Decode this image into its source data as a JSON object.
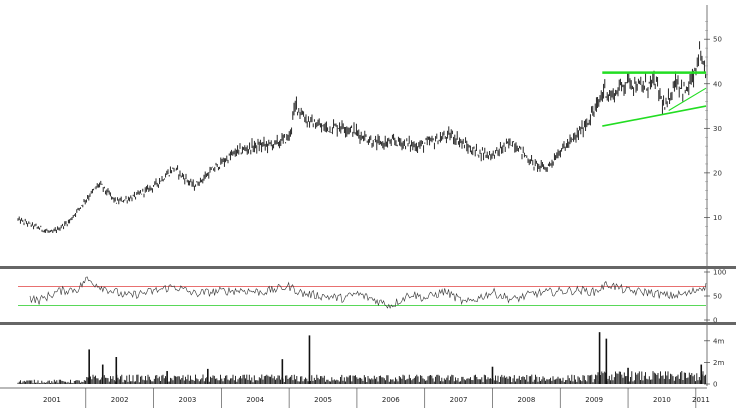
{
  "colors": {
    "price": "#111111",
    "trendline": "#22dd22",
    "rsi_line": "#333333",
    "rsi_upper": "#e04040",
    "rsi_lower": "#22cc22",
    "volume": "#111111",
    "separator": "#666666"
  },
  "chart_data": [
    {
      "type": "line",
      "panel": "price",
      "x_start": 2001.0,
      "x_end": 2011.15,
      "ylim": [
        0,
        57
      ],
      "yticks": [
        "10",
        "20",
        "30",
        "40",
        "50"
      ],
      "x": [
        2001.0,
        2001.25,
        2001.5,
        2001.75,
        2002.0,
        2002.2,
        2002.45,
        2002.7,
        2003.0,
        2003.3,
        2003.6,
        2003.9,
        2004.2,
        2004.5,
        2004.8,
        2005.0,
        2005.1,
        2005.25,
        2005.5,
        2005.8,
        2006.0,
        2006.3,
        2006.6,
        2006.9,
        2007.1,
        2007.4,
        2007.7,
        2008.0,
        2008.3,
        2008.6,
        2008.8,
        2009.0,
        2009.2,
        2009.4,
        2009.55,
        2009.65,
        2009.75,
        2010.0,
        2010.2,
        2010.4,
        2010.55,
        2010.7,
        2010.85,
        2011.0,
        2011.05,
        2011.1
      ],
      "y": [
        9.5,
        8.0,
        6.5,
        9.0,
        14.0,
        17.5,
        13.5,
        14.5,
        17.0,
        21.0,
        17.0,
        21.0,
        24.5,
        26.0,
        26.5,
        28.0,
        35.5,
        32.0,
        30.0,
        30.5,
        29.0,
        26.5,
        27.0,
        26.0,
        27.0,
        28.5,
        25.0,
        24.0,
        27.0,
        22.0,
        21.0,
        25.0,
        27.5,
        31.5,
        35.0,
        39.0,
        37.0,
        41.0,
        39.0,
        40.5,
        34.0,
        41.0,
        38.0,
        42.5,
        47.0,
        43.0
      ],
      "trendlines": [
        {
          "x": [
            2009.62,
            2011.15
          ],
          "y": [
            42.5,
            42.5
          ]
        },
        {
          "x": [
            2009.62,
            2011.15
          ],
          "y": [
            30.5,
            35.0
          ]
        },
        {
          "x": [
            2010.6,
            2011.15
          ],
          "y": [
            34.0,
            39.0
          ]
        }
      ],
      "year_labels": [
        "2001",
        "2002",
        "2003",
        "2004",
        "2005",
        "2006",
        "2007",
        "2008",
        "2009",
        "2010",
        "2011"
      ]
    },
    {
      "type": "line",
      "panel": "rsi",
      "ylim": [
        0,
        100
      ],
      "yticks": [
        "0",
        "50",
        "100"
      ],
      "upper_band": 70,
      "lower_band": 30,
      "x": [
        2001.0,
        2001.3,
        2001.6,
        2001.9,
        2002.0,
        2002.3,
        2002.6,
        2003.0,
        2003.3,
        2003.6,
        2004.0,
        2004.3,
        2004.6,
        2005.0,
        2005.2,
        2005.5,
        2005.8,
        2006.0,
        2006.2,
        2006.5,
        2006.8,
        2007.0,
        2007.3,
        2007.6,
        2008.0,
        2008.3,
        2008.6,
        2009.0,
        2009.3,
        2009.5,
        2009.7,
        2010.0,
        2010.3,
        2010.6,
        2010.9,
        2011.1
      ],
      "y": [
        55,
        40,
        60,
        65,
        85,
        65,
        50,
        60,
        70,
        55,
        60,
        62,
        58,
        70,
        55,
        50,
        45,
        55,
        45,
        30,
        55,
        45,
        60,
        35,
        58,
        42,
        55,
        60,
        62,
        58,
        75,
        60,
        58,
        50,
        55,
        70
      ]
    },
    {
      "type": "bar",
      "panel": "volume",
      "ylim": [
        0,
        5
      ],
      "yticks": [
        "0",
        "2m",
        "4m"
      ],
      "spikes": [
        {
          "x": 2002.05,
          "v": 3.2
        },
        {
          "x": 2002.25,
          "v": 1.8
        },
        {
          "x": 2002.45,
          "v": 2.5
        },
        {
          "x": 2003.2,
          "v": 1.2
        },
        {
          "x": 2003.8,
          "v": 1.4
        },
        {
          "x": 2004.9,
          "v": 2.3
        },
        {
          "x": 2005.3,
          "v": 4.5
        },
        {
          "x": 2008.0,
          "v": 1.6
        },
        {
          "x": 2009.58,
          "v": 4.8
        },
        {
          "x": 2009.68,
          "v": 4.2
        },
        {
          "x": 2010.0,
          "v": 1.5
        },
        {
          "x": 2011.08,
          "v": 1.8
        }
      ]
    }
  ]
}
